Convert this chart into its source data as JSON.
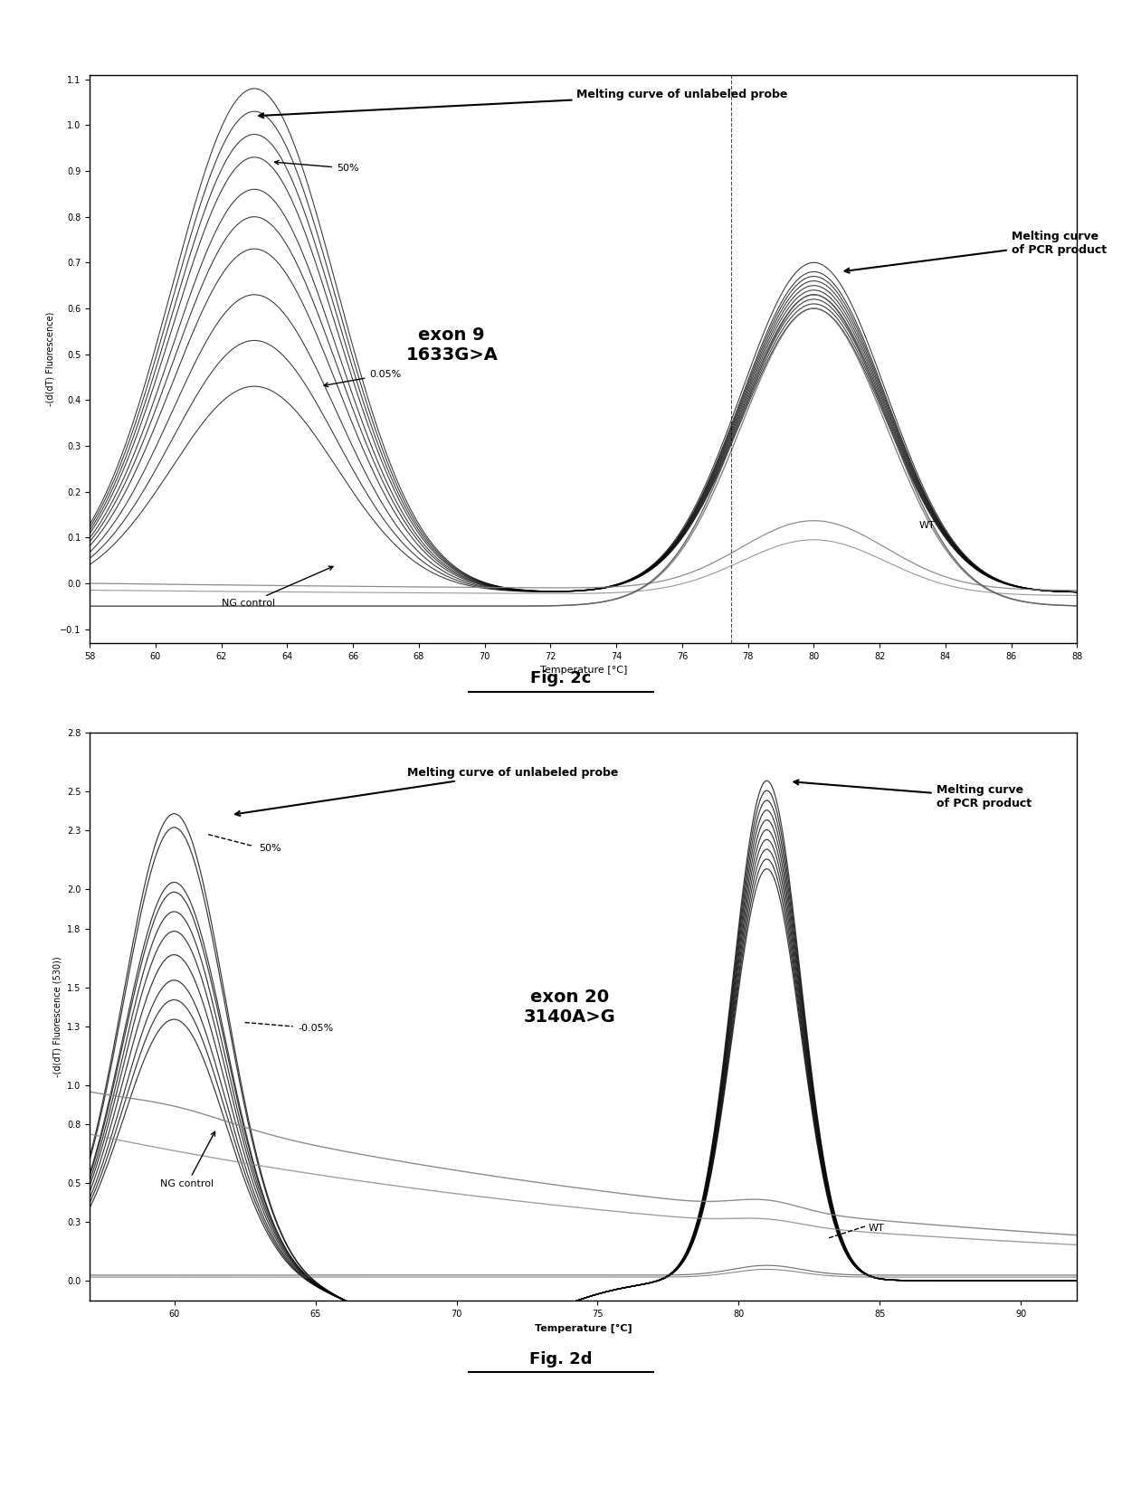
{
  "fig2c": {
    "title": "Fig. 2c",
    "xlabel": "Temperature [°C]",
    "ylabel": "-(d(dT) Fluorescence)",
    "xlim": [
      58,
      88
    ],
    "ylim": [
      -0.13,
      1.11
    ],
    "yticks": [
      -0.1,
      0.0,
      0.1,
      0.2,
      0.3,
      0.4,
      0.5,
      0.6,
      0.7,
      0.8,
      0.9,
      1.0,
      1.1
    ],
    "xticks": [
      58,
      60,
      62,
      64,
      66,
      68,
      70,
      72,
      74,
      76,
      78,
      80,
      82,
      84,
      86,
      88
    ],
    "annotation_probe": "Melting curve of unlabeled probe",
    "annotation_pcr": "Melting curve\nof PCR product",
    "label_50": "50%",
    "label_005": "0.05%",
    "label_ng": "NG control",
    "label_wt": "WT",
    "exon_label": "exon 9\n1633G>A",
    "vline_x": 77.5,
    "background_color": "#ffffff"
  },
  "fig2d": {
    "title": "Fig. 2d",
    "xlabel": "Temperature [°C]",
    "ylabel": "-(d(dT) Fluorescence (530))",
    "xlim": [
      57,
      92
    ],
    "ylim": [
      -0.1,
      2.8
    ],
    "yticks": [
      0.0,
      0.3,
      0.5,
      0.8,
      1.0,
      1.3,
      1.5,
      1.8,
      2.0,
      2.3,
      2.5,
      2.8
    ],
    "xticks": [
      60,
      65,
      70,
      75,
      80,
      85,
      90
    ],
    "annotation_probe": "Melting curve of unlabeled probe",
    "annotation_pcr": "Melting curve\nof PCR product",
    "label_50": "50%",
    "label_005": "-0.05%",
    "label_ng": "NG control",
    "label_wt": "WT",
    "exon_label": "exon 20\n3140A>G",
    "background_color": "#ffffff"
  }
}
